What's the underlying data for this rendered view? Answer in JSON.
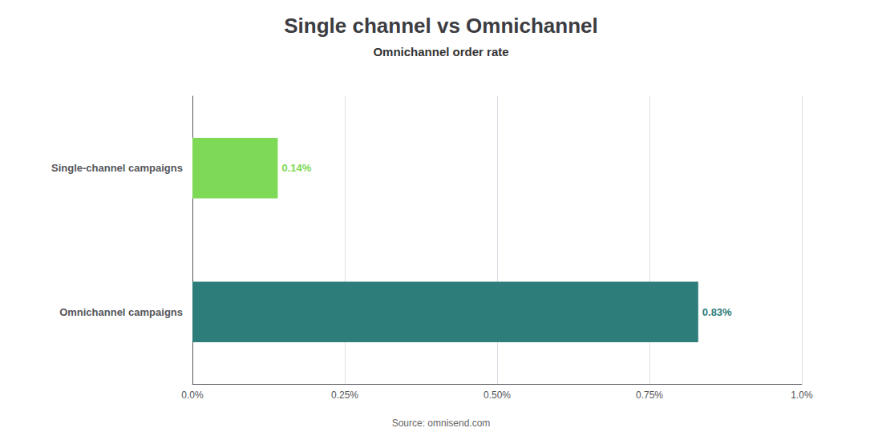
{
  "chart_data": {
    "type": "bar",
    "orientation": "horizontal",
    "title": "Single channel vs Omnichannel",
    "subtitle": "Omnichannel order rate",
    "source": "Source: omnisend.com",
    "categories": [
      "Omnichannel campaigns",
      "Single-channel campaigns"
    ],
    "values": [
      0.83,
      0.14
    ],
    "value_labels": [
      "0.83%",
      "0.14%"
    ],
    "colors": [
      "#2d7d7a",
      "#7ed957"
    ],
    "data_labels": true,
    "xlim": [
      0,
      1.0
    ],
    "xticks": [
      {
        "value": 0.0,
        "label": "0.0%"
      },
      {
        "value": 0.25,
        "label": "0.25%"
      },
      {
        "value": 0.5,
        "label": "0.50%"
      },
      {
        "value": 0.75,
        "label": "0.75%"
      },
      {
        "value": 1.0,
        "label": "1.0%"
      }
    ],
    "grid": true
  }
}
